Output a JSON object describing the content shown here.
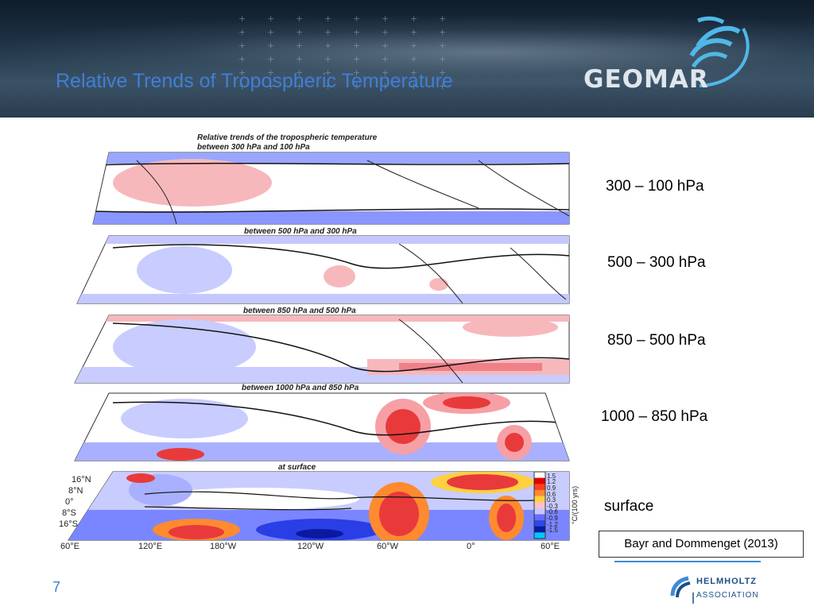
{
  "slide": {
    "title": "Relative Trends of Tropospheric Temperature",
    "number": "7",
    "citation": "Bayr and Dommenget (2013)"
  },
  "logos": {
    "geomar": "GEOMAR",
    "helmholtz_name": "HELMHOLTZ",
    "helmholtz_sub": "ASSOCIATION"
  },
  "figure": {
    "main_title": "Relative trends of the tropospheric temperature",
    "panels": [
      {
        "title": "between 300 hPa and 100 hPa",
        "label": "300 – 100 hPa"
      },
      {
        "title": "between 500 hPa and 300 hPa",
        "label": "500 – 300 hPa"
      },
      {
        "title": "between 850 hPa and 500 hPa",
        "label": "850 – 500 hPa"
      },
      {
        "title": "between 1000 hPa and 850 hPa",
        "label": "1000 – 850 hPa"
      },
      {
        "title": "at surface",
        "label": "surface"
      }
    ],
    "lon_ticks": [
      "60°E",
      "120°E",
      "180°W",
      "120°W",
      "60°W",
      "0°",
      "60°E"
    ],
    "lat_ticks": [
      "16°N",
      "8°N",
      "0°",
      "8°S",
      "16°S"
    ],
    "colorbar": {
      "unit": "°C/(100 yrs)",
      "levels": [
        "1.5",
        "1.2",
        "0.9",
        "0.6",
        "0.3",
        "-0.3",
        "-0.6",
        "-0.9",
        "-1.2",
        "-1.5"
      ],
      "colors": [
        "#ffffff",
        "#e00000",
        "#ff4020",
        "#ff8a30",
        "#ffd040",
        "#ffc0c8",
        "#c8c8ff",
        "#6a6aff",
        "#2a4ae6",
        "#0a1aa0",
        "#00c8ff"
      ]
    }
  }
}
